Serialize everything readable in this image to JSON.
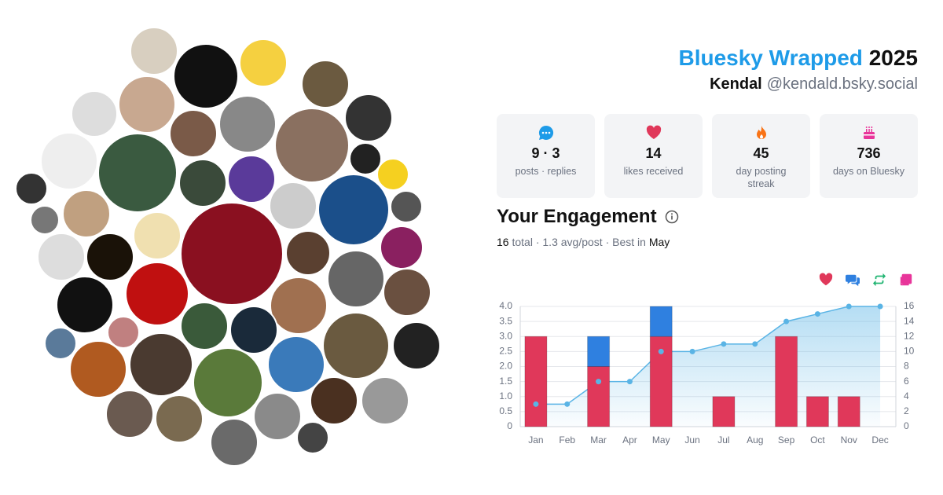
{
  "header": {
    "title": "Bluesky Wrapped",
    "year": "2025",
    "name": "Kendal",
    "handle": "@kendald.bsky.social"
  },
  "stats": [
    {
      "value": "9 · 3",
      "label": "posts · replies"
    },
    {
      "value": "14",
      "label": "likes received"
    },
    {
      "value": "45",
      "label": "day posting streak"
    },
    {
      "value": "736",
      "label": "days on Bluesky"
    }
  ],
  "engagement": {
    "title": "Your Engagement",
    "total": 16,
    "total_label": "total",
    "separator": "·",
    "average": "1.3 avg/post",
    "best_label": "Best in",
    "best_month": "May"
  },
  "chart_data": {
    "type": "bar",
    "stacked": true,
    "grid": true,
    "categories": [
      "Jan",
      "Feb",
      "Mar",
      "Apr",
      "May",
      "Jun",
      "Jul",
      "Aug",
      "Sep",
      "Oct",
      "Nov",
      "Dec"
    ],
    "series": [
      {
        "color": "#e0385a",
        "values": [
          3,
          0,
          2,
          0,
          3,
          0,
          1,
          0,
          3,
          1,
          1,
          0
        ]
      },
      {
        "color": "#2f80e0",
        "values": [
          0,
          0,
          1,
          0,
          1,
          0,
          0,
          0,
          0,
          0,
          0,
          0
        ]
      },
      {
        "color": "#22b573",
        "values": [
          0,
          0,
          0,
          0,
          0,
          0,
          0,
          0,
          0,
          0,
          0,
          0
        ]
      },
      {
        "color": "#e8359a",
        "values": [
          0,
          0,
          0,
          0,
          0,
          0,
          0,
          0,
          0,
          0,
          0,
          0
        ]
      },
      {
        "type": "line",
        "axis": "y2",
        "color": "#5ab4e5",
        "values": [
          3,
          3,
          6,
          6,
          10,
          10,
          11,
          11,
          14,
          15,
          16,
          16
        ]
      }
    ],
    "ylim": [
      0,
      4
    ],
    "yticks": [
      0,
      0.5,
      {
        "value": 1,
        "label": "1.0"
      },
      1.5,
      {
        "value": 2,
        "label": "2.0"
      },
      2.5,
      {
        "value": 3,
        "label": "3.0"
      },
      3.5,
      {
        "value": 4,
        "label": "4.0"
      }
    ],
    "y2lim": [
      0,
      16
    ],
    "y2ticks": [
      0,
      2,
      4,
      6,
      8,
      10,
      12,
      14,
      16
    ]
  }
}
